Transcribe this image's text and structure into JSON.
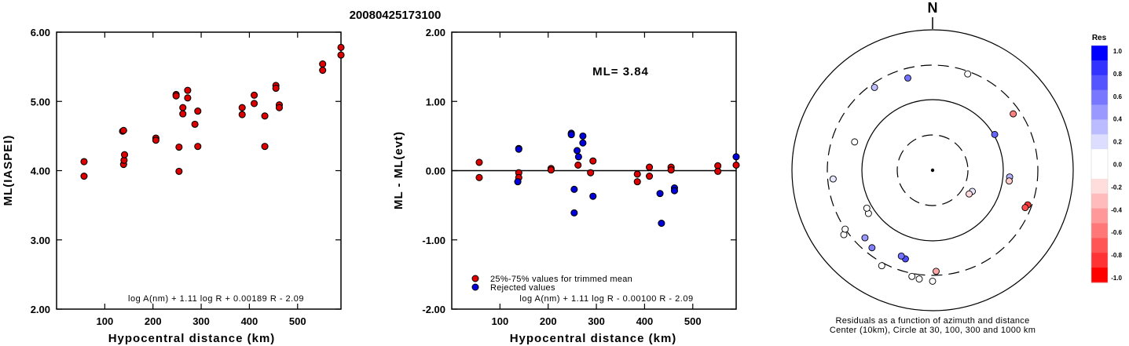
{
  "title": "20080425173100",
  "chart_data": [
    {
      "type": "scatter",
      "id": "left",
      "xlabel": "Hypocentral distance (km)",
      "ylabel": "ML(IASPEI)",
      "xlim": [
        0,
        590
      ],
      "ylim": [
        2.0,
        6.0
      ],
      "xticks": [
        100,
        200,
        300,
        400,
        500
      ],
      "yticks": [
        2.0,
        3.0,
        4.0,
        5.0,
        6.0
      ],
      "ytick_labels": [
        "2.00",
        "3.00",
        "4.00",
        "5.00",
        "6.00"
      ],
      "formula": "log A(nm) + 1.11 log R + 0.00189 R - 2.09",
      "series": [
        {
          "color": "#dd0000",
          "points": [
            [
              57,
              4.13
            ],
            [
              57,
              3.92
            ],
            [
              137,
              4.57
            ],
            [
              139,
              4.58
            ],
            [
              139,
              4.09
            ],
            [
              140,
              4.15
            ],
            [
              141,
              4.23
            ],
            [
              206,
              4.47
            ],
            [
              206,
              4.44
            ],
            [
              248,
              5.1
            ],
            [
              248,
              5.08
            ],
            [
              254,
              4.34
            ],
            [
              254,
              3.99
            ],
            [
              262,
              4.91
            ],
            [
              262,
              4.82
            ],
            [
              272,
              5.16
            ],
            [
              272,
              5.05
            ],
            [
              287,
              4.67
            ],
            [
              293,
              4.86
            ],
            [
              293,
              4.35
            ],
            [
              385,
              4.91
            ],
            [
              385,
              4.81
            ],
            [
              410,
              5.09
            ],
            [
              410,
              4.97
            ],
            [
              432,
              4.79
            ],
            [
              432,
              4.35
            ],
            [
              455,
              5.23
            ],
            [
              455,
              5.19
            ],
            [
              462,
              4.95
            ],
            [
              462,
              4.91
            ],
            [
              552,
              5.54
            ],
            [
              552,
              5.45
            ],
            [
              590,
              5.78
            ],
            [
              590,
              5.67
            ]
          ]
        }
      ]
    },
    {
      "type": "scatter",
      "id": "middle",
      "xlabel": "Hypocentral distance (km)",
      "ylabel": "ML - ML(evt)",
      "xlim": [
        0,
        590
      ],
      "ylim": [
        -2.0,
        2.0
      ],
      "xticks": [
        100,
        200,
        300,
        400,
        500
      ],
      "yticks": [
        -2.0,
        -1.0,
        0.0,
        1.0,
        2.0
      ],
      "ytick_labels": [
        "-2.00",
        "-1.00",
        "0.00",
        "1.00",
        "2.00"
      ],
      "annotation": "ML= 3.84",
      "formula": "log A(nm) + 1.11 log R - 0.00100 R - 2.09",
      "legend": [
        {
          "label": "25%-75% values for trimmed mean",
          "color": "#dd0000"
        },
        {
          "label": "Rejected values",
          "color": "#0000dd"
        }
      ],
      "series": [
        {
          "name": "25%-75% values for trimmed mean",
          "color": "#dd0000",
          "points": [
            [
              57,
              0.12
            ],
            [
              57,
              -0.1
            ],
            [
              139,
              -0.03
            ],
            [
              139,
              -0.1
            ],
            [
              206,
              0.03
            ],
            [
              206,
              0.01
            ],
            [
              262,
              0.08
            ],
            [
              288,
              -0.03
            ],
            [
              293,
              0.14
            ],
            [
              385,
              -0.05
            ],
            [
              385,
              -0.16
            ],
            [
              410,
              0.05
            ],
            [
              410,
              -0.08
            ],
            [
              455,
              0.05
            ],
            [
              455,
              0.01
            ],
            [
              552,
              0.07
            ],
            [
              552,
              -0.01
            ],
            [
              590,
              0.08
            ]
          ]
        },
        {
          "name": "Rejected values",
          "color": "#0000dd",
          "points": [
            [
              137,
              -0.16
            ],
            [
              139,
              0.32
            ],
            [
              139,
              0.31
            ],
            [
              248,
              0.54
            ],
            [
              248,
              0.52
            ],
            [
              254,
              -0.27
            ],
            [
              254,
              -0.61
            ],
            [
              260,
              0.29
            ],
            [
              263,
              0.2
            ],
            [
              272,
              0.5
            ],
            [
              272,
              0.4
            ],
            [
              293,
              -0.37
            ],
            [
              432,
              -0.33
            ],
            [
              435,
              -0.76
            ],
            [
              462,
              -0.25
            ],
            [
              462,
              -0.29
            ],
            [
              590,
              0.2
            ]
          ]
        }
      ]
    }
  ],
  "polar": {
    "north_label": "N",
    "caption_line1": "Residuals as a function of azimuth and distance",
    "caption_line2": "Center (10km), Circle at 30, 100, 300 and 1000 km",
    "points": [
      {
        "az": 325,
        "r": 0.72,
        "res": 0.25
      },
      {
        "az": 345,
        "r": 0.68,
        "res": 0.55
      },
      {
        "az": 20,
        "r": 0.73,
        "res": 0.0
      },
      {
        "az": 55,
        "r": 0.7,
        "res": -0.5
      },
      {
        "az": 60,
        "r": 0.51,
        "res": 0.6
      },
      {
        "az": 95,
        "r": 0.55,
        "res": 0.3
      },
      {
        "az": 98,
        "r": 0.55,
        "res": -0.2
      },
      {
        "az": 110,
        "r": 0.72,
        "res": -0.8
      },
      {
        "az": 112,
        "r": 0.71,
        "res": -0.7
      },
      {
        "az": 118,
        "r": 0.32,
        "res": 0.1
      },
      {
        "az": 123,
        "r": 0.31,
        "res": -0.15
      },
      {
        "az": 178,
        "r": 0.72,
        "res": -0.35
      },
      {
        "az": 180,
        "r": 0.79,
        "res": 0.0
      },
      {
        "az": 187,
        "r": 0.78,
        "res": 0.0
      },
      {
        "az": 191,
        "r": 0.77,
        "res": 0.0
      },
      {
        "az": 197,
        "r": 0.66,
        "res": 0.7
      },
      {
        "az": 200,
        "r": 0.65,
        "res": 0.55
      },
      {
        "az": 208,
        "r": 0.77,
        "res": 0.0
      },
      {
        "az": 218,
        "r": 0.7,
        "res": 0.5
      },
      {
        "az": 225,
        "r": 0.68,
        "res": 0.4
      },
      {
        "az": 234,
        "r": 0.78,
        "res": 0.0
      },
      {
        "az": 236,
        "r": 0.75,
        "res": 0.0
      },
      {
        "az": 236,
        "r": 0.55,
        "res": 0.0
      },
      {
        "az": 240,
        "r": 0.54,
        "res": 0.0
      },
      {
        "az": 265,
        "r": 0.71,
        "res": 0.1
      },
      {
        "az": 290,
        "r": 0.59,
        "res": 0.0
      }
    ],
    "colorbar": {
      "title": "Res",
      "labels": [
        "1.0",
        "0.8",
        "0.6",
        "0.4",
        "0.2",
        "0.0",
        "-0.2",
        "-0.4",
        "-0.6",
        "-0.8",
        "-1.0"
      ],
      "colors": [
        "#0000ff",
        "#3333ff",
        "#5555ff",
        "#7777ff",
        "#9999ff",
        "#bbbbff",
        "#ddddff",
        "#ffffff",
        "#ffffff",
        "#ffdddd",
        "#ffbbbb",
        "#ff9999",
        "#ff7777",
        "#ff5555",
        "#ff3333",
        "#ff0000"
      ]
    }
  }
}
